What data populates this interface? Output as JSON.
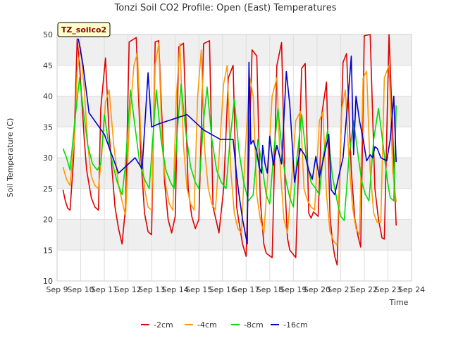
{
  "chart_data": {
    "type": "line",
    "title": "Tonzi Soil CO2 Profile: Open (East) Temperatures",
    "xlabel": "Time",
    "ylabel": "Soil Temperature (C)",
    "badge": "TZ_soilco2",
    "xlim": [
      9,
      24
    ],
    "ylim": [
      10,
      50
    ],
    "x_ticks": [
      9,
      10,
      11,
      12,
      13,
      14,
      15,
      16,
      17,
      18,
      19,
      20,
      21,
      22,
      23,
      24
    ],
    "x_tick_labels": [
      "Sep 9",
      "Sep 10",
      "Sep 11",
      "Sep 12",
      "Sep 13",
      "Sep 14",
      "Sep 15",
      "Sep 16",
      "Sep 17",
      "Sep 18",
      "Sep 19",
      "Sep 20",
      "Sep 21",
      "Sep 22",
      "Sep 23",
      "Sep 24"
    ],
    "y_ticks": [
      10,
      15,
      20,
      25,
      30,
      35,
      40,
      45,
      50
    ],
    "y_tick_labels": [
      "10",
      "15",
      "20",
      "25",
      "30",
      "35",
      "40",
      "45",
      "50"
    ],
    "grid": true,
    "legend_position": "bottom",
    "colors": {
      "s2": "#dd0000",
      "s4": "#ff9900",
      "s8": "#00dd00",
      "s16": "#0000cc",
      "band": "#efefef",
      "grid": "#dddddd",
      "badge_bg": "#ffffcc"
    },
    "series": [
      {
        "name": "-2cm",
        "color": "#dd0000",
        "x": [
          9.25,
          9.35,
          9.45,
          9.55,
          9.7,
          9.85,
          9.95,
          10.15,
          10.25,
          10.45,
          10.6,
          10.75,
          10.85,
          11.05,
          11.2,
          11.45,
          11.6,
          11.75,
          11.9,
          12.05,
          12.35,
          12.55,
          12.7,
          12.85,
          13.0,
          13.15,
          13.3,
          13.55,
          13.7,
          13.85,
          14.0,
          14.15,
          14.35,
          14.55,
          14.7,
          14.85,
          15.0,
          15.2,
          15.45,
          15.6,
          15.75,
          15.85,
          16.05,
          16.25,
          16.45,
          16.6,
          16.7,
          16.85,
          17.0,
          17.25,
          17.45,
          17.6,
          17.75,
          17.85,
          18.1,
          18.3,
          18.5,
          18.65,
          18.75,
          18.85,
          19.1,
          19.35,
          19.5,
          19.65,
          19.75,
          19.85,
          20.05,
          20.2,
          20.4,
          20.55,
          20.65,
          20.75,
          20.85,
          21.1,
          21.25,
          21.45,
          21.6,
          21.75,
          21.85,
          22.0,
          22.25,
          22.45,
          22.6,
          22.75,
          22.85,
          23.05,
          23.35
        ],
        "y": [
          24.8,
          23.0,
          21.8,
          21.5,
          30.0,
          49.3,
          45.0,
          33.0,
          28.0,
          23.5,
          22.0,
          21.5,
          38.0,
          46.2,
          34.0,
          22.0,
          18.5,
          16.0,
          22.0,
          48.8,
          49.5,
          30.0,
          21.0,
          18.0,
          17.5,
          48.8,
          49.0,
          26.0,
          20.0,
          17.8,
          20.5,
          48.0,
          48.6,
          25.0,
          20.5,
          18.5,
          20.0,
          48.5,
          49.0,
          22.0,
          19.5,
          17.8,
          25.0,
          43.0,
          45.0,
          22.0,
          19.5,
          16.0,
          14.0,
          47.5,
          46.5,
          23.0,
          16.0,
          14.5,
          13.8,
          45.0,
          48.7,
          25.0,
          17.0,
          15.0,
          13.8,
          44.5,
          45.3,
          21.0,
          20.2,
          21.2,
          20.5,
          37.0,
          42.3,
          20.5,
          16.5,
          14.0,
          12.6,
          45.5,
          46.9,
          28.0,
          20.0,
          17.0,
          15.5,
          49.8,
          50.0,
          25.0,
          20.0,
          17.0,
          16.8,
          50.0,
          19.0
        ]
      },
      {
        "name": "-4cm",
        "color": "#ff9900",
        "x": [
          9.25,
          9.4,
          9.55,
          9.75,
          9.85,
          10.0,
          10.15,
          10.3,
          10.45,
          10.6,
          10.75,
          10.9,
          11.05,
          11.2,
          11.4,
          11.6,
          11.75,
          11.9,
          12.05,
          12.25,
          12.4,
          12.55,
          12.7,
          12.85,
          13.0,
          13.15,
          13.3,
          13.45,
          13.6,
          13.75,
          13.9,
          14.05,
          14.2,
          14.35,
          14.5,
          14.65,
          14.8,
          14.95,
          15.1,
          15.25,
          15.4,
          15.55,
          15.7,
          15.85,
          16.05,
          16.2,
          16.35,
          16.5,
          16.65,
          16.8,
          16.95,
          17.15,
          17.3,
          17.45,
          17.6,
          17.75,
          17.9,
          18.1,
          18.3,
          18.45,
          18.6,
          18.75,
          18.9,
          19.1,
          19.3,
          19.45,
          19.6,
          19.75,
          19.9,
          20.1,
          20.25,
          20.4,
          20.55,
          20.7,
          20.85,
          21.05,
          21.2,
          21.35,
          21.5,
          21.65,
          21.8,
          21.95,
          22.1,
          22.25,
          22.4,
          22.55,
          22.7,
          22.85,
          23.05,
          23.2,
          23.35
        ],
        "y": [
          28.5,
          26.5,
          25.5,
          34.0,
          44.0,
          48.0,
          41.0,
          32.0,
          27.0,
          25.5,
          25.0,
          31.0,
          39.0,
          41.0,
          32.0,
          25.5,
          23.0,
          20.5,
          35.0,
          45.0,
          47.0,
          33.0,
          25.0,
          22.0,
          21.5,
          45.0,
          48.5,
          32.0,
          25.5,
          22.5,
          21.5,
          40.0,
          48.5,
          32.0,
          25.0,
          22.5,
          21.5,
          40.0,
          47.5,
          31.0,
          25.0,
          22.5,
          21.5,
          30.0,
          42.0,
          45.0,
          28.0,
          21.0,
          18.5,
          17.8,
          30.0,
          43.0,
          40.0,
          24.0,
          20.0,
          17.8,
          26.0,
          40.0,
          43.0,
          28.0,
          20.0,
          17.8,
          25.0,
          36.0,
          37.5,
          25.0,
          23.0,
          22.0,
          21.5,
          36.0,
          37.5,
          24.0,
          18.0,
          16.5,
          15.8,
          38.0,
          41.0,
          30.0,
          22.0,
          18.5,
          17.5,
          43.0,
          44.0,
          28.0,
          21.0,
          19.5,
          19.5,
          43.0,
          45.0,
          28.0,
          22.8
        ]
      },
      {
        "name": "-8cm",
        "color": "#00dd00",
        "x": [
          9.25,
          9.4,
          9.55,
          9.75,
          9.95,
          10.1,
          10.3,
          10.5,
          10.7,
          10.85,
          11.0,
          11.15,
          11.35,
          11.55,
          11.75,
          11.9,
          12.1,
          12.3,
          12.5,
          12.7,
          12.9,
          13.05,
          13.2,
          13.4,
          13.6,
          13.8,
          13.95,
          14.1,
          14.25,
          14.45,
          14.65,
          14.85,
          15.0,
          15.2,
          15.35,
          15.55,
          15.75,
          15.95,
          16.15,
          16.3,
          16.5,
          16.7,
          16.9,
          17.1,
          17.3,
          17.5,
          17.7,
          17.85,
          18.0,
          18.15,
          18.35,
          18.55,
          18.7,
          18.85,
          19.0,
          19.15,
          19.35,
          19.55,
          19.75,
          19.95,
          20.1,
          20.25,
          20.45,
          20.65,
          20.85,
          21.0,
          21.15,
          21.35,
          21.55,
          21.75,
          21.9,
          22.05,
          22.2,
          22.4,
          22.6,
          22.8,
          22.95,
          23.1,
          23.25,
          23.35
        ],
        "y": [
          31.5,
          30.0,
          28.0,
          36.0,
          43.0,
          38.0,
          32.0,
          29.0,
          28.0,
          29.0,
          37.0,
          33.0,
          29.0,
          26.0,
          24.0,
          29.0,
          41.0,
          35.0,
          29.0,
          26.5,
          25.0,
          33.0,
          41.0,
          33.0,
          28.0,
          26.0,
          25.0,
          35.0,
          42.0,
          34.0,
          28.5,
          26.0,
          25.0,
          36.0,
          41.5,
          33.0,
          28.0,
          26.0,
          25.0,
          32.0,
          39.5,
          31.0,
          26.0,
          23.0,
          24.0,
          33.0,
          28.0,
          24.0,
          22.5,
          30.0,
          38.0,
          30.0,
          26.0,
          23.5,
          22.0,
          30.0,
          37.0,
          30.0,
          26.0,
          25.0,
          24.0,
          30.0,
          34.5,
          27.0,
          23.0,
          20.5,
          19.8,
          30.0,
          36.0,
          30.0,
          26.0,
          24.0,
          23.0,
          33.0,
          38.0,
          32.0,
          27.0,
          23.5,
          23.0,
          38.5
        ]
      },
      {
        "name": "-16cm",
        "color": "#0000cc",
        "x": [
          9.9,
          10.1,
          10.35,
          11.0,
          11.6,
          12.3,
          12.6,
          12.85,
          13.0,
          13.3,
          14.5,
          15.2,
          15.9,
          16.45,
          16.55,
          16.6,
          16.7,
          16.85,
          17.05,
          17.12,
          17.2,
          17.3,
          17.45,
          17.55,
          17.65,
          17.7,
          17.8,
          17.9,
          18.0,
          18.15,
          18.3,
          18.5,
          18.7,
          18.85,
          19.05,
          19.15,
          19.3,
          19.5,
          19.65,
          19.8,
          19.95,
          20.1,
          20.5,
          20.6,
          20.75,
          20.95,
          21.1,
          21.35,
          21.45,
          21.55,
          21.65,
          21.8,
          21.95,
          22.1,
          22.25,
          22.35,
          22.45,
          22.55,
          22.7,
          22.95,
          23.1,
          23.25,
          23.35
        ],
        "y": [
          49.3,
          45.0,
          37.3,
          33.8,
          27.5,
          30.0,
          28.2,
          43.8,
          35.0,
          35.5,
          37.0,
          34.5,
          33.0,
          33.0,
          29.0,
          27.0,
          24.0,
          20.0,
          16.0,
          45.5,
          32.2,
          32.8,
          31.0,
          28.5,
          27.5,
          32.0,
          29.0,
          27.5,
          33.5,
          28.8,
          32.0,
          29.0,
          44.0,
          38.5,
          26.0,
          28.5,
          31.5,
          30.3,
          28.0,
          26.5,
          30.2,
          26.8,
          33.8,
          24.8,
          24.0,
          27.5,
          30.0,
          41.3,
          46.5,
          30.5,
          40.0,
          36.0,
          33.0,
          29.5,
          30.5,
          30.0,
          31.8,
          31.5,
          30.0,
          29.5,
          33.0,
          40.0,
          29.3
        ]
      }
    ]
  }
}
